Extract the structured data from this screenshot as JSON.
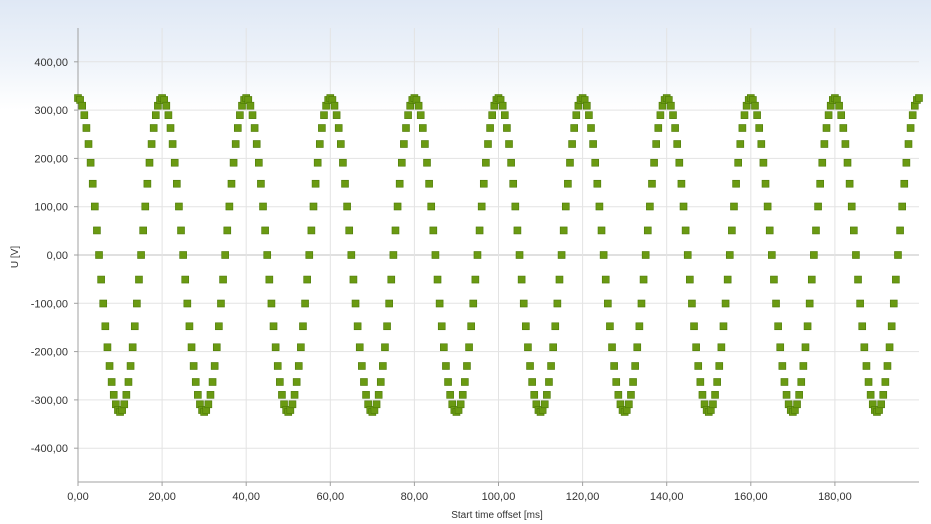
{
  "chart_data": {
    "type": "scatter",
    "title": "",
    "xlabel": "Start time offset [ms]",
    "ylabel": "U [V]",
    "xlim": [
      0,
      200
    ],
    "ylim": [
      -470,
      470
    ],
    "x_ticks": [
      0,
      20,
      40,
      60,
      80,
      100,
      120,
      140,
      160,
      180
    ],
    "x_tick_labels": [
      "0,00",
      "20,00",
      "40,00",
      "60,00",
      "80,00",
      "100,00",
      "120,00",
      "140,00",
      "160,00",
      "180,00"
    ],
    "y_ticks": [
      400,
      300,
      200,
      100,
      0,
      -100,
      -200,
      -300,
      -400
    ],
    "y_tick_labels": [
      "400,00",
      "300,00",
      "200,00",
      "100,00",
      "0,00",
      "-100,00",
      "-200,00",
      "-300,00",
      "-400,00"
    ],
    "grid": true,
    "legend": "none",
    "series": [
      {
        "marker": "square",
        "color": "#6a9a12",
        "waveform": "cosine",
        "amplitude": 325,
        "period": 20,
        "phase": 0,
        "x_start": 0,
        "x_end": 200,
        "sample_interval": 0.5
      }
    ]
  },
  "colors": {
    "marker_fill": "#6a9a12",
    "marker_stroke": "#4d7a08",
    "grid": "#e3e3e3",
    "zero_line": "#c0c0c0",
    "axis": "#a0a0a0"
  }
}
